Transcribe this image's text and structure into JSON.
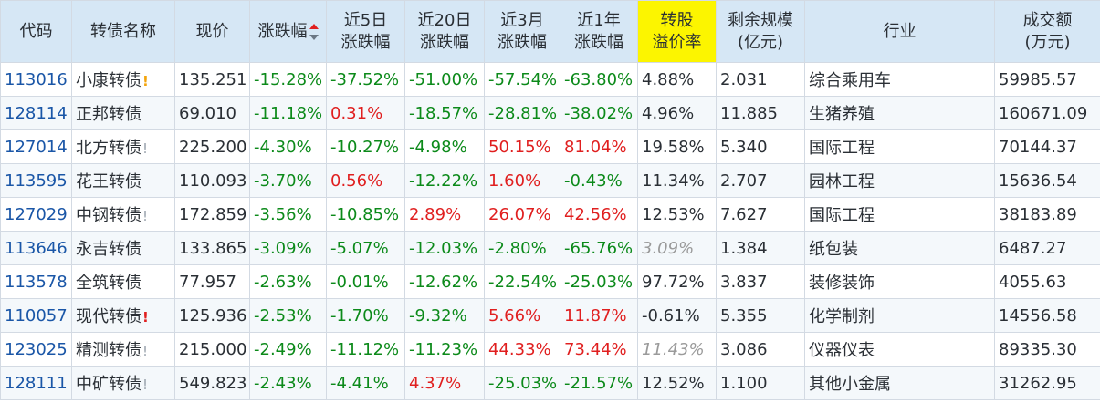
{
  "headers": {
    "code": "代码",
    "name": "转债名称",
    "price": "现价",
    "change": "涨跌幅",
    "chg5d_1": "近5日",
    "chg5d_2": "涨跌幅",
    "chg20d_1": "近20日",
    "chg20d_2": "涨跌幅",
    "chg3m_1": "近3月",
    "chg3m_2": "涨跌幅",
    "chg1y_1": "近1年",
    "chg1y_2": "涨跌幅",
    "premium_1": "转股",
    "premium_2": "溢价率",
    "remaining_1": "剩余规模",
    "remaining_2": "(亿元)",
    "industry": "行业",
    "volume_1": "成交额",
    "volume_2": "(万元)"
  },
  "sort": {
    "column": "change",
    "direction": "desc",
    "icon": "sort-arrows-icon"
  },
  "colors": {
    "positive": "#e01f1f",
    "negative": "#0c8a1a",
    "code_link": "#1a56a7",
    "highlight_header": "#fcf500",
    "header_bg": "#d6e7f5"
  },
  "rows": [
    {
      "code": "113016",
      "name": "小康转债",
      "flag": "!",
      "flag_color": "orange",
      "price": "135.251",
      "change": "-15.28%",
      "chg5d": "-37.52%",
      "chg20d": "-51.00%",
      "chg3m": "-57.54%",
      "chg1y": "-63.80%",
      "premium": "4.88%",
      "premium_muted": false,
      "remaining": "2.031",
      "industry": "综合乘用车",
      "volume": "59985.57"
    },
    {
      "code": "128114",
      "name": "正邦转债",
      "flag": "",
      "flag_color": "",
      "price": "69.010",
      "change": "-11.18%",
      "chg5d": "0.31%",
      "chg20d": "-18.57%",
      "chg3m": "-28.81%",
      "chg1y": "-38.02%",
      "premium": "4.96%",
      "premium_muted": false,
      "remaining": "11.885",
      "industry": "生猪养殖",
      "volume": "160671.09"
    },
    {
      "code": "127014",
      "name": "北方转债",
      "flag": "!",
      "flag_color": "gray",
      "price": "225.200",
      "change": "-4.30%",
      "chg5d": "-10.27%",
      "chg20d": "-4.98%",
      "chg3m": "50.15%",
      "chg1y": "81.04%",
      "premium": "19.58%",
      "premium_muted": false,
      "remaining": "5.340",
      "industry": "国际工程",
      "volume": "70144.37"
    },
    {
      "code": "113595",
      "name": "花王转债",
      "flag": "",
      "flag_color": "",
      "price": "110.093",
      "change": "-3.70%",
      "chg5d": "0.56%",
      "chg20d": "-12.22%",
      "chg3m": "1.60%",
      "chg1y": "-0.43%",
      "premium": "11.34%",
      "premium_muted": false,
      "remaining": "2.707",
      "industry": "园林工程",
      "volume": "15636.54"
    },
    {
      "code": "127029",
      "name": "中钢转债",
      "flag": "!",
      "flag_color": "gray",
      "price": "172.859",
      "change": "-3.56%",
      "chg5d": "-10.85%",
      "chg20d": "2.89%",
      "chg3m": "26.07%",
      "chg1y": "42.56%",
      "premium": "12.53%",
      "premium_muted": false,
      "remaining": "7.627",
      "industry": "国际工程",
      "volume": "38183.89"
    },
    {
      "code": "113646",
      "name": "永吉转债",
      "flag": "",
      "flag_color": "",
      "price": "133.865",
      "change": "-3.09%",
      "chg5d": "-5.07%",
      "chg20d": "-12.03%",
      "chg3m": "-2.80%",
      "chg1y": "-65.76%",
      "premium": "3.09%",
      "premium_muted": true,
      "remaining": "1.384",
      "industry": "纸包装",
      "volume": "6487.27"
    },
    {
      "code": "113578",
      "name": "全筑转债",
      "flag": "",
      "flag_color": "",
      "price": "77.957",
      "change": "-2.63%",
      "chg5d": "-0.01%",
      "chg20d": "-12.62%",
      "chg3m": "-22.54%",
      "chg1y": "-25.03%",
      "premium": "97.72%",
      "premium_muted": false,
      "remaining": "3.837",
      "industry": "装修装饰",
      "volume": "4055.63"
    },
    {
      "code": "110057",
      "name": "现代转债",
      "flag": "!",
      "flag_color": "red",
      "price": "125.936",
      "change": "-2.53%",
      "chg5d": "-1.70%",
      "chg20d": "-9.32%",
      "chg3m": "5.66%",
      "chg1y": "11.87%",
      "premium": "-0.61%",
      "premium_muted": false,
      "remaining": "5.355",
      "industry": "化学制剂",
      "volume": "14556.58"
    },
    {
      "code": "123025",
      "name": "精测转债",
      "flag": "!",
      "flag_color": "gray",
      "price": "215.000",
      "change": "-2.49%",
      "chg5d": "-11.12%",
      "chg20d": "-11.23%",
      "chg3m": "44.33%",
      "chg1y": "73.44%",
      "premium": "11.43%",
      "premium_muted": true,
      "remaining": "3.086",
      "industry": "仪器仪表",
      "volume": "89335.30"
    },
    {
      "code": "128111",
      "name": "中矿转债",
      "flag": "!",
      "flag_color": "gray",
      "price": "549.823",
      "change": "-2.43%",
      "chg5d": "-4.41%",
      "chg20d": "4.37%",
      "chg3m": "-25.03%",
      "chg1y": "-21.57%",
      "premium": "12.52%",
      "premium_muted": false,
      "remaining": "1.100",
      "industry": "其他小金属",
      "volume": "31262.95"
    }
  ]
}
